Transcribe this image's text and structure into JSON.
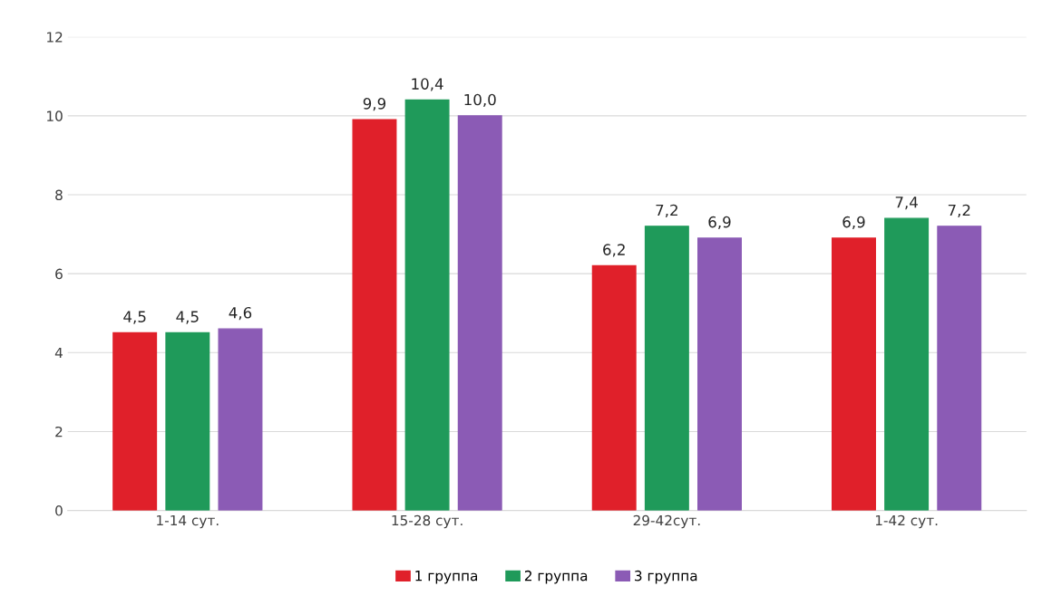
{
  "chart_data": {
    "type": "bar",
    "categories": [
      "1-14 сут.",
      "15-28 сут.",
      "29-42сут.",
      "1-42 сут."
    ],
    "series": [
      {
        "name": "1 группа",
        "color": "#e0202a",
        "values": [
          4.5,
          9.9,
          6.2,
          6.9
        ],
        "value_labels": [
          "4,5",
          "9,9",
          "6,2",
          "6,9"
        ]
      },
      {
        "name": "2 группа",
        "color": "#1f9a5a",
        "values": [
          4.5,
          10.4,
          7.2,
          7.4
        ],
        "value_labels": [
          "4,5",
          "10,4",
          "7,2",
          "7,4"
        ]
      },
      {
        "name": "3 группа",
        "color": "#8b5bb5",
        "values": [
          4.6,
          10.0,
          6.9,
          7.2
        ],
        "value_labels": [
          "4,6",
          "10,0",
          "6,9",
          "7,2"
        ]
      }
    ],
    "ylim": [
      0,
      12
    ],
    "yticks": [
      0,
      2,
      4,
      6,
      8,
      10,
      12
    ],
    "grid": "y",
    "legend": "bottom"
  }
}
